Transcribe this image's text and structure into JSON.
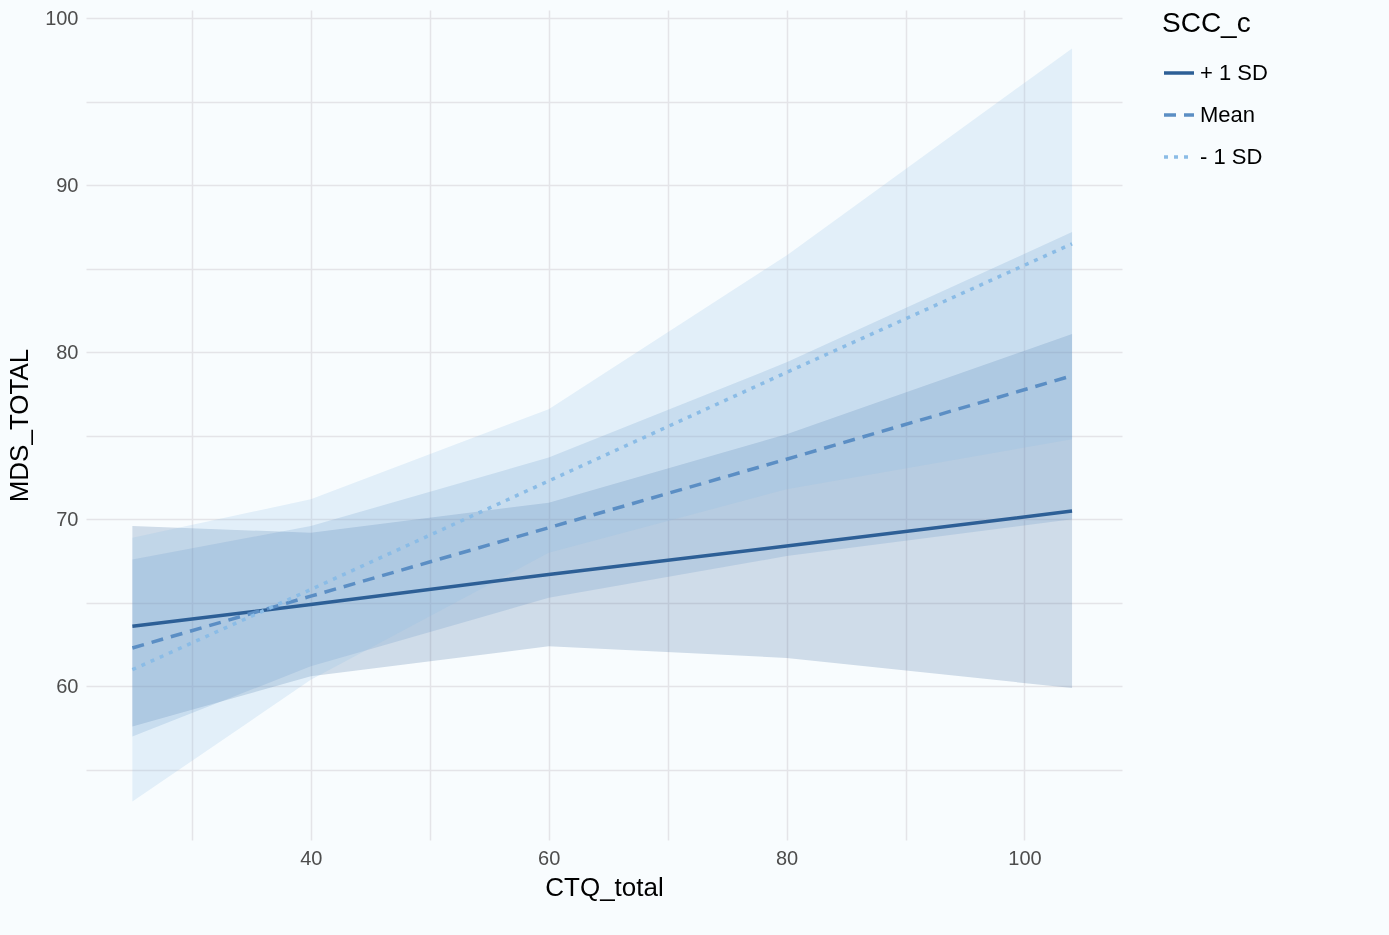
{
  "chart_data": {
    "type": "line",
    "xlabel": "CTQ_total",
    "ylabel": "MDS_TOTAL",
    "legend_title": "SCC_c",
    "legend": "right",
    "grid": true,
    "xlim": [
      21.1,
      108.2
    ],
    "ylim": [
      50.8,
      100.5
    ],
    "xticks": [
      {
        "value": 30,
        "label": null
      },
      40,
      {
        "value": 50,
        "label": null
      },
      60,
      {
        "value": 70,
        "label": null
      },
      80,
      {
        "value": 90,
        "label": null
      },
      100
    ],
    "yticks": [
      {
        "value": 55,
        "label": null
      },
      60,
      {
        "value": 65,
        "label": null
      },
      70,
      {
        "value": 75,
        "label": null
      },
      80,
      {
        "value": 85,
        "label": null
      },
      90,
      {
        "value": 95,
        "label": null
      },
      100
    ],
    "series": [
      {
        "name": "+ 1 SD",
        "color": "#2d5f96",
        "line_style": "solid",
        "x": [
          25,
          40,
          60,
          80,
          104
        ],
        "values": [
          63.6,
          64.9,
          66.7,
          68.4,
          70.5
        ],
        "lower": [
          57.6,
          60.6,
          62.4,
          61.7,
          59.9
        ],
        "upper": [
          69.6,
          69.2,
          71.0,
          75.1,
          81.1
        ]
      },
      {
        "name": "Mean",
        "color": "#5b8ec4",
        "line_style": "dashed",
        "x": [
          25,
          40,
          60,
          80,
          104
        ],
        "values": [
          62.3,
          65.4,
          69.5,
          73.6,
          78.6
        ],
        "lower": [
          57.0,
          61.2,
          65.3,
          67.8,
          70.0
        ],
        "upper": [
          67.6,
          69.6,
          73.7,
          79.4,
          87.2
        ]
      },
      {
        "name": "- 1 SD",
        "color": "#8bbce6",
        "line_style": "dotted",
        "x": [
          25,
          40,
          60,
          80,
          104
        ],
        "values": [
          61.0,
          65.8,
          72.3,
          78.8,
          86.5
        ],
        "lower": [
          53.1,
          60.4,
          68.0,
          71.8,
          74.8
        ],
        "upper": [
          68.9,
          71.2,
          76.6,
          85.8,
          98.2
        ]
      }
    ]
  }
}
